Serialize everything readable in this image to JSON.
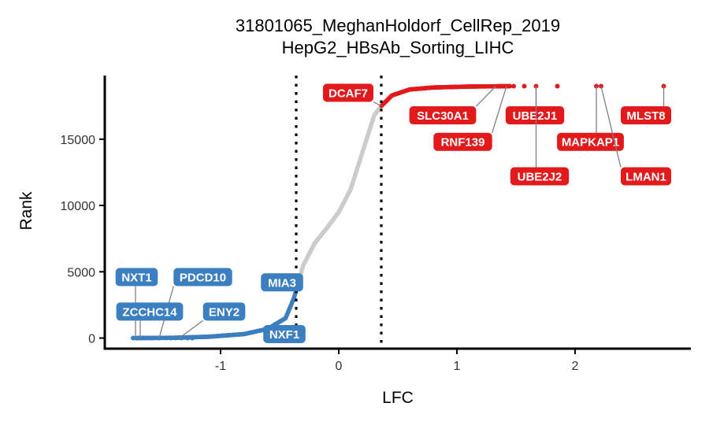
{
  "chart_data": {
    "type": "scatter",
    "title": "31801065_MeghanHoldorf_CellRep_2019",
    "subtitle": "HepG2_HBsAb_Sorting_LIHC",
    "xlabel": "LFC",
    "ylabel": "Rank",
    "xlim": [
      -1.98,
      2.98
    ],
    "ylim": [
      -800,
      19800
    ],
    "x_ticks": [
      -1,
      0,
      1,
      2
    ],
    "x_tick_labels": [
      "-1",
      "0",
      "1",
      "2"
    ],
    "y_ticks": [
      0,
      5000,
      10000,
      15000
    ],
    "y_tick_labels": [
      "0",
      "5000",
      "10000",
      "15000"
    ],
    "thresholds": [
      -0.36,
      0.36
    ],
    "grid": false,
    "legend": "none",
    "colors": {
      "negative": "#3b7fc0",
      "neutral": "#cccccc",
      "positive": "#e31a1c",
      "label_text": "#ffffff",
      "axis": "#000000"
    },
    "curve_points": [
      {
        "lfc": -1.72,
        "rank": 0
      },
      {
        "lfc": -1.4,
        "rank": 20
      },
      {
        "lfc": -1.1,
        "rank": 100
      },
      {
        "lfc": -0.8,
        "rank": 300
      },
      {
        "lfc": -0.6,
        "rank": 700
      },
      {
        "lfc": -0.45,
        "rank": 1500
      },
      {
        "lfc": -0.38,
        "rank": 3000
      },
      {
        "lfc": -0.36,
        "rank": 3600
      },
      {
        "lfc": -0.3,
        "rank": 5500
      },
      {
        "lfc": -0.2,
        "rank": 7200
      },
      {
        "lfc": -0.1,
        "rank": 8300
      },
      {
        "lfc": 0.0,
        "rank": 9500
      },
      {
        "lfc": 0.1,
        "rank": 11200
      },
      {
        "lfc": 0.2,
        "rank": 14000
      },
      {
        "lfc": 0.3,
        "rank": 16800
      },
      {
        "lfc": 0.36,
        "rank": 17500
      },
      {
        "lfc": 0.45,
        "rank": 18300
      },
      {
        "lfc": 0.6,
        "rank": 18750
      },
      {
        "lfc": 0.8,
        "rank": 18900
      },
      {
        "lfc": 1.1,
        "rank": 18970
      },
      {
        "lfc": 1.45,
        "rank": 19000
      }
    ],
    "outliers_negative": [
      {
        "lfc": -1.74,
        "rank": 0
      },
      {
        "lfc": -1.7,
        "rank": 0
      },
      {
        "lfc": -1.58,
        "rank": 0
      },
      {
        "lfc": -1.52,
        "rank": 0
      },
      {
        "lfc": -1.46,
        "rank": 0
      },
      {
        "lfc": -1.42,
        "rank": 0
      },
      {
        "lfc": -1.38,
        "rank": 0
      },
      {
        "lfc": -1.33,
        "rank": 0
      },
      {
        "lfc": -1.28,
        "rank": 0
      },
      {
        "lfc": -1.24,
        "rank": 0
      }
    ],
    "outliers_positive": [
      {
        "lfc": 1.48,
        "rank": 19000
      },
      {
        "lfc": 1.57,
        "rank": 19000
      },
      {
        "lfc": 1.67,
        "rank": 19000
      },
      {
        "lfc": 1.85,
        "rank": 19000
      },
      {
        "lfc": 2.18,
        "rank": 19000
      },
      {
        "lfc": 2.22,
        "rank": 19000
      },
      {
        "lfc": 2.75,
        "rank": 19000
      }
    ],
    "labels": [
      {
        "text": "NXT1",
        "group": "negative",
        "point": {
          "lfc": -1.72,
          "rank": 0
        },
        "label": {
          "lfc": -1.71,
          "rank": 4600
        }
      },
      {
        "text": "PDCD10",
        "group": "negative",
        "point": {
          "lfc": -1.52,
          "rank": 0
        },
        "label": {
          "lfc": -1.15,
          "rank": 4600
        }
      },
      {
        "text": "ZCCHC14",
        "group": "negative",
        "point": {
          "lfc": -1.68,
          "rank": 0
        },
        "label": {
          "lfc": -1.6,
          "rank": 2000
        }
      },
      {
        "text": "ENY2",
        "group": "negative",
        "point": {
          "lfc": -1.35,
          "rank": 0
        },
        "label": {
          "lfc": -0.97,
          "rank": 2000
        }
      },
      {
        "text": "MIA3",
        "group": "negative",
        "point": {
          "lfc": -0.42,
          "rank": 3300
        },
        "label": {
          "lfc": -0.48,
          "rank": 4200
        }
      },
      {
        "text": "NXF1",
        "group": "negative",
        "point": {
          "lfc": -0.6,
          "rank": 500
        },
        "label": {
          "lfc": -0.46,
          "rank": 300
        }
      },
      {
        "text": "DCAF7",
        "group": "positive",
        "point": {
          "lfc": 0.36,
          "rank": 17500
        },
        "label": {
          "lfc": 0.08,
          "rank": 18500
        }
      },
      {
        "text": "SLC30A1",
        "group": "positive",
        "point": {
          "lfc": 1.33,
          "rank": 19000
        },
        "label": {
          "lfc": 0.88,
          "rank": 16800
        }
      },
      {
        "text": "UBE2J1",
        "group": "positive",
        "point": {
          "lfc": 1.67,
          "rank": 19000
        },
        "label": {
          "lfc": 1.66,
          "rank": 16800
        }
      },
      {
        "text": "MLST8",
        "group": "positive",
        "point": {
          "lfc": 2.75,
          "rank": 19000
        },
        "label": {
          "lfc": 2.6,
          "rank": 16800
        }
      },
      {
        "text": "RNF139",
        "group": "positive",
        "point": {
          "lfc": 1.42,
          "rank": 19000
        },
        "label": {
          "lfc": 1.05,
          "rank": 14800
        }
      },
      {
        "text": "MAPKAP1",
        "group": "positive",
        "point": {
          "lfc": 2.18,
          "rank": 19000
        },
        "label": {
          "lfc": 2.13,
          "rank": 14800
        }
      },
      {
        "text": "UBE2J2",
        "group": "positive",
        "point": {
          "lfc": 1.67,
          "rank": 19000
        },
        "label": {
          "lfc": 1.7,
          "rank": 12200
        }
      },
      {
        "text": "LMAN1",
        "group": "positive",
        "point": {
          "lfc": 2.22,
          "rank": 19000
        },
        "label": {
          "lfc": 2.6,
          "rank": 12200
        }
      }
    ]
  }
}
